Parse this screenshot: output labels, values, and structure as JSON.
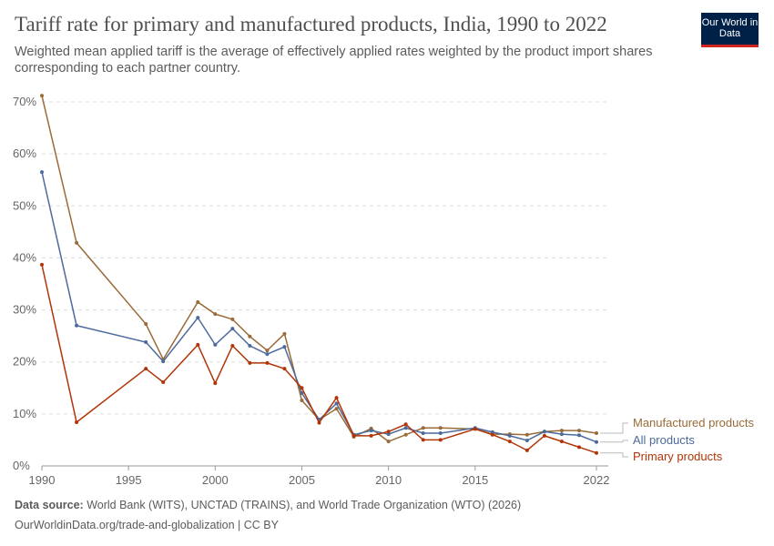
{
  "header": {
    "title": "Tariff rate for primary and manufactured products, India, 1990 to 2022",
    "subtitle": "Weighted mean applied tariff is the average of effectively applied rates weighted by the product import shares corresponding to each partner country.",
    "logo": "Our World in Data"
  },
  "footer": {
    "source_label": "Data source:",
    "source": " World Bank (WITS), UNCTAD (TRAINS), and World Trade Organization (WTO) (2026)",
    "link": "OurWorldinData.org/trade-and-globalization | CC BY"
  },
  "chart_data": {
    "type": "line",
    "title": "Tariff rate for primary and manufactured products, India, 1990 to 2022",
    "xlim": [
      1990,
      2022
    ],
    "ylim": [
      0,
      70
    ],
    "grid": true,
    "legend": "right (line end labels)",
    "x_ticks": [
      1990,
      1995,
      2000,
      2005,
      2010,
      2015,
      2022
    ],
    "y_ticks": [
      "0%",
      "10%",
      "20%",
      "30%",
      "40%",
      "50%",
      "60%",
      "70%"
    ],
    "x": [
      1990,
      1992,
      1996,
      1997,
      1999,
      2000,
      2001,
      2002,
      2003,
      2004,
      2005,
      2006,
      2007,
      2008,
      2009,
      2010,
      2011,
      2012,
      2013,
      2015,
      2016,
      2017,
      2018,
      2019,
      2020,
      2021,
      2022
    ],
    "series": [
      {
        "name": "Manufactured products",
        "color": "#9a6b38",
        "values": [
          71.2,
          42.9,
          27.3,
          20.5,
          31.5,
          29.2,
          28.2,
          24.9,
          22.2,
          25.4,
          12.6,
          8.9,
          11.0,
          5.6,
          7.2,
          4.7,
          6.0,
          7.3,
          7.3,
          7.1,
          6.1,
          6.1,
          6.0,
          6.6,
          6.8,
          6.8,
          6.3
        ]
      },
      {
        "name": "All products",
        "color": "#4c6a9c",
        "values": [
          56.5,
          27.0,
          23.8,
          20.1,
          28.5,
          23.3,
          26.4,
          23.1,
          21.5,
          22.9,
          14.0,
          8.9,
          12.0,
          6.0,
          6.8,
          6.1,
          7.3,
          6.3,
          6.3,
          7.3,
          6.5,
          5.8,
          4.9,
          6.6,
          6.1,
          5.9,
          4.6
        ]
      },
      {
        "name": "Primary products",
        "color": "#b13507",
        "values": [
          38.7,
          8.4,
          18.7,
          16.1,
          23.3,
          15.9,
          23.1,
          19.8,
          19.8,
          18.7,
          15.0,
          8.3,
          13.1,
          5.8,
          5.8,
          6.6,
          8.0,
          5.0,
          5.0,
          7.1,
          6.0,
          4.7,
          3.0,
          5.8,
          4.7,
          3.6,
          2.5
        ]
      }
    ]
  }
}
